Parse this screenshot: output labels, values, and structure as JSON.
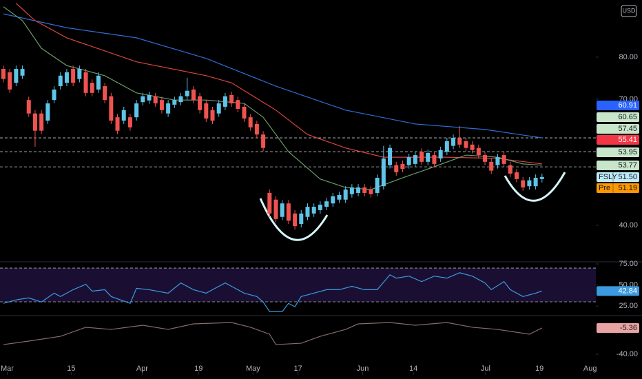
{
  "chart_data": [
    {
      "type": "candlestick",
      "name": "FSLY",
      "currency": "USD",
      "up_color": "#5fc4e8",
      "down_color": "#ef5350",
      "ylim": [
        31.3,
        93.6
      ],
      "yticks": [
        {
          "value": 80,
          "label": "80.00"
        },
        {
          "value": 70,
          "label": "70.00"
        },
        {
          "value": 40,
          "label": "40.00"
        }
      ],
      "xlim": [
        -0.54,
        93.5
      ],
      "xticks": [
        {
          "value": 0.6,
          "label": "Mar"
        },
        {
          "value": 10.7,
          "label": "15"
        },
        {
          "value": 21.9,
          "label": "Apr"
        },
        {
          "value": 30.8,
          "label": "19"
        },
        {
          "value": 39.4,
          "label": "May"
        },
        {
          "value": 46.5,
          "label": "17"
        },
        {
          "value": 56.7,
          "label": "Jun"
        },
        {
          "value": 64.7,
          "label": "14"
        },
        {
          "value": 76.1,
          "label": "Jul"
        },
        {
          "value": 84.6,
          "label": "19"
        },
        {
          "value": 92.6,
          "label": "Aug"
        }
      ],
      "open": [
        77.2,
        76.4,
        73.9,
        75.6,
        69.8,
        66.6,
        66.6,
        64.9,
        69.8,
        73.1,
        73.9,
        77.2,
        74.8,
        76.4,
        73.9,
        72.3,
        73.1,
        70.7,
        65.7,
        64.9,
        65.7,
        65.7,
        69.3,
        69.7,
        70.7,
        69.8,
        66.6,
        68.7,
        69.3,
        70.7,
        72.3,
        70.7,
        69.0,
        67.4,
        66.6,
        68.2,
        71.0,
        69.8,
        68.2,
        65.7,
        64.1,
        61.6,
        47.7,
        46.1,
        42.0,
        45.2,
        42.8,
        40.3,
        42.0,
        42.8,
        43.6,
        44.4,
        45.2,
        46.1,
        46.1,
        47.4,
        47.7,
        49.0,
        48.5,
        47.7,
        49.3,
        54.3,
        54.3,
        54.6,
        54.3,
        54.6,
        57.5,
        55.1,
        56.7,
        55.9,
        57.5,
        58.9,
        60.8,
        60.0,
        59.2,
        58.4,
        56.7,
        55.1,
        54.3,
        56.7,
        54.3,
        52.6,
        50.7,
        49.3,
        49.3,
        51.0
      ],
      "high": [
        78.0,
        77.2,
        78.0,
        78.0,
        70.6,
        67.4,
        67.4,
        69.8,
        73.1,
        76.4,
        77.2,
        78.0,
        78.0,
        77.2,
        74.7,
        76.4,
        73.9,
        71.5,
        66.5,
        68.2,
        66.5,
        69.8,
        71.5,
        71.8,
        71.5,
        70.6,
        69.8,
        70.6,
        71.5,
        75.1,
        73.1,
        71.5,
        69.8,
        68.2,
        69.8,
        71.5,
        71.8,
        70.6,
        69.0,
        66.5,
        64.9,
        62.4,
        48.5,
        46.9,
        46.0,
        46.0,
        43.6,
        43.6,
        45.2,
        45.2,
        45.7,
        46.5,
        47.7,
        48.0,
        49.3,
        49.8,
        49.8,
        49.8,
        49.3,
        52.1,
        58.9,
        59.2,
        55.1,
        55.4,
        57.0,
        57.5,
        58.3,
        58.0,
        57.5,
        58.7,
        60.8,
        61.6,
        63.6,
        60.8,
        60.0,
        59.2,
        57.5,
        55.9,
        57.0,
        57.5,
        55.1,
        53.4,
        51.5,
        51.5,
        52.1,
        52.3
      ],
      "low": [
        74.0,
        71.5,
        73.1,
        74.8,
        65.8,
        58.7,
        61.7,
        64.1,
        69.0,
        72.3,
        73.1,
        73.1,
        74.0,
        70.7,
        70.7,
        71.5,
        69.0,
        64.1,
        61.7,
        64.1,
        62.5,
        64.9,
        68.5,
        68.9,
        68.2,
        66.6,
        65.8,
        67.9,
        68.5,
        69.9,
        69.0,
        66.6,
        64.6,
        64.1,
        65.8,
        67.4,
        68.2,
        66.9,
        64.6,
        62.5,
        60.8,
        57.6,
        42.0,
        40.7,
        41.2,
        40.3,
        39.0,
        39.5,
        41.2,
        42.0,
        42.8,
        43.6,
        44.4,
        45.3,
        45.3,
        46.6,
        46.9,
        46.9,
        46.6,
        46.9,
        48.5,
        53.5,
        51.8,
        52.6,
        53.5,
        53.8,
        54.3,
        54.3,
        53.8,
        55.1,
        56.7,
        58.1,
        58.4,
        57.6,
        57.1,
        55.9,
        54.3,
        52.2,
        53.5,
        53.8,
        51.5,
        50.2,
        48.2,
        48.5,
        48.5,
        50.2
      ],
      "close": [
        74.8,
        72.3,
        77.2,
        77.2,
        66.6,
        62.5,
        62.5,
        69.0,
        72.3,
        75.6,
        76.4,
        73.9,
        77.2,
        71.5,
        71.5,
        75.6,
        69.8,
        64.9,
        62.5,
        67.4,
        63.3,
        69.0,
        70.7,
        71.0,
        69.0,
        67.4,
        69.0,
        69.8,
        70.7,
        72.0,
        69.8,
        67.4,
        65.4,
        64.9,
        69.0,
        70.7,
        69.0,
        67.7,
        65.4,
        63.3,
        61.6,
        58.4,
        42.8,
        41.5,
        45.2,
        41.1,
        39.8,
        42.8,
        44.4,
        44.4,
        44.9,
        45.7,
        46.9,
        47.2,
        48.5,
        49.0,
        49.0,
        47.7,
        47.4,
        51.3,
        55.9,
        58.4,
        52.6,
        53.4,
        56.2,
        56.7,
        55.1,
        57.2,
        54.6,
        57.9,
        60.0,
        60.8,
        59.2,
        58.4,
        57.9,
        56.7,
        55.1,
        53.0,
        56.2,
        54.6,
        52.3,
        51.0,
        49.0,
        50.7,
        51.3,
        51.5
      ],
      "series": [
        {
          "color": "#2f6fd6",
          "x": [
            0,
            10,
            21,
            32,
            43,
            54,
            65,
            76,
            85
          ],
          "values": [
            90.3,
            87.0,
            84.6,
            79.7,
            73.1,
            67.4,
            64.1,
            62.8,
            60.8
          ]
        },
        {
          "color": "#d9453f",
          "x": [
            2,
            5,
            10,
            21,
            32,
            36,
            43,
            48,
            54,
            60,
            70,
            78,
            85
          ],
          "values": [
            92.8,
            88.7,
            84.6,
            78.9,
            75.6,
            73.9,
            67.4,
            61.6,
            58.4,
            56.2,
            56.2,
            55.9,
            54.6
          ]
        },
        {
          "color": "#6a9a6a",
          "x": [
            0,
            3,
            6,
            10,
            16,
            21,
            27,
            32,
            38,
            41,
            45,
            50,
            54,
            58,
            63,
            67,
            73,
            78,
            82,
            85
          ],
          "values": [
            92.0,
            88.7,
            82.1,
            78.0,
            75.6,
            71.5,
            69.8,
            69.8,
            69.0,
            65.7,
            57.5,
            51.0,
            49.0,
            48.5,
            51.3,
            53.4,
            56.7,
            56.2,
            54.6,
            54.3
          ]
        }
      ],
      "levels": [
        60.8,
        57.5,
        53.9
      ],
      "badges": [
        {
          "text": "60.91",
          "color": "#2962ff",
          "text_color": "#ffffff"
        },
        {
          "text": "60.65",
          "color": "#c8e6c9",
          "text_color": "#131722"
        },
        {
          "text": "57.45",
          "color": "#c8e6c9",
          "text_color": "#131722"
        },
        {
          "text": "55.41",
          "color": "#f23645",
          "text_color": "#ffffff"
        },
        {
          "text": "53.95",
          "color": "#c8e6c9",
          "text_color": "#131722"
        },
        {
          "text": "53.77",
          "color": "#c8e6c9",
          "text_color": "#131722"
        },
        {
          "name": "FSLY",
          "text": "51.50",
          "color": "#bfeaf7",
          "text_color": "#131722"
        },
        {
          "name": "Pre",
          "text": "51.19",
          "color": "#ff9800",
          "text_color": "#131722"
        }
      ]
    },
    {
      "type": "line",
      "ylim": [
        14.5,
        76.6
      ],
      "yticks": [
        {
          "value": 75,
          "label": "75.00"
        },
        {
          "value": 50,
          "label": "50.00"
        },
        {
          "value": 25,
          "label": "25.00"
        }
      ],
      "bands": [
        70,
        30
      ],
      "band_color": "#1a0f33",
      "series": [
        {
          "color": "#3c9be0",
          "x": [
            0,
            2,
            4,
            6,
            8,
            9,
            11,
            13,
            14,
            16,
            17,
            20,
            21,
            23,
            26,
            28,
            30,
            32,
            33,
            35,
            36,
            38,
            40,
            41,
            42,
            44,
            45,
            46,
            47,
            49,
            51,
            53,
            55,
            57,
            59,
            61,
            62,
            64,
            66,
            68,
            70,
            72,
            74,
            76,
            77,
            79,
            80,
            82,
            84,
            85
          ],
          "values": [
            28.2,
            32.3,
            34.7,
            29.8,
            40.3,
            36.3,
            44.4,
            50.8,
            42.7,
            44.4,
            36.3,
            28.2,
            46.0,
            44.4,
            40.3,
            52.4,
            44.4,
            40.3,
            44.4,
            52.4,
            48.4,
            40.3,
            36.3,
            29.8,
            18.5,
            18.5,
            28.2,
            24.2,
            36.3,
            40.3,
            44.4,
            44.4,
            48.4,
            44.4,
            44.4,
            62.1,
            58.1,
            60.5,
            54.0,
            60.5,
            58.1,
            64.5,
            60.5,
            52.4,
            44.4,
            54.0,
            44.4,
            36.3,
            40.3,
            42.8
          ]
        }
      ],
      "badge": {
        "text": "42.84",
        "color": "#3c9be0",
        "text_color": "#ffffff"
      }
    },
    {
      "type": "line",
      "ylim": [
        -63.6,
        9.1
      ],
      "yticks": [
        {
          "value": -40,
          "label": "-40.00"
        }
      ],
      "series": [
        {
          "color": "#8a6a6a",
          "x": [
            0,
            4,
            9,
            13,
            17,
            22,
            26,
            30,
            36,
            39,
            42,
            43,
            47,
            50,
            54,
            56,
            61,
            65,
            70,
            74,
            78,
            83,
            85
          ],
          "values": [
            -27.3,
            -22.7,
            -16.4,
            -4.5,
            -7.3,
            -1.8,
            -7.3,
            0,
            1.8,
            -4.5,
            -13.6,
            -27.3,
            -25.5,
            -16.4,
            -7.3,
            0,
            1.8,
            -1.8,
            1.8,
            -4.5,
            -7.3,
            -13.6,
            -5.4
          ]
        }
      ],
      "badge": {
        "text": "-5.36",
        "color": "#e8a3a3",
        "text_color": "#131722"
      }
    }
  ]
}
